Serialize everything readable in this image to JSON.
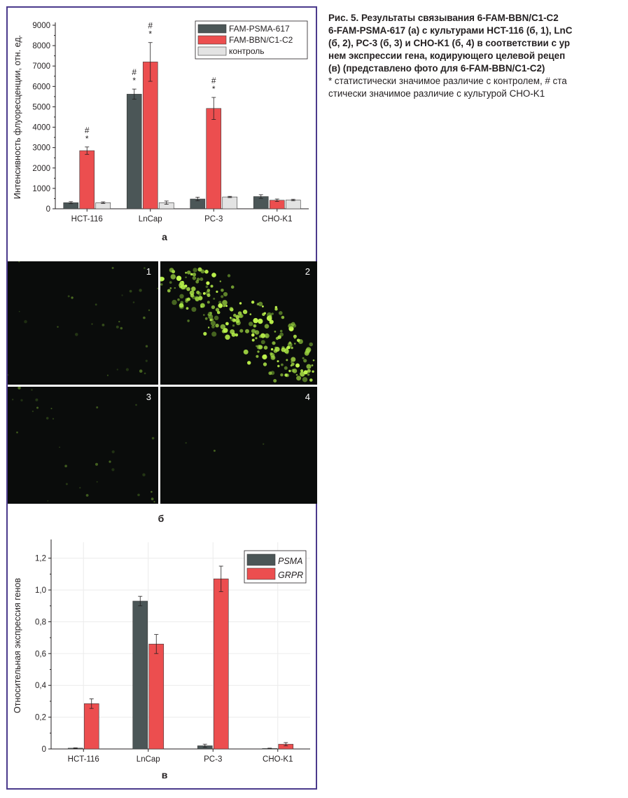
{
  "caption": {
    "lines": [
      "Рис. 5. Результаты связывания 6-FAM-BBN/C1-C2",
      "6-FAM-PSMA-617 (а) с культурами HCT-116 (б, 1), LnC",
      "(б, 2), PC-3 (б, 3) и CHO-K1 (б, 4) в соответствии с ур",
      "нем экспрессии гена, кодирующего целевой рецеп",
      "(в) (представлено фото для 6-FAM-BBN/C1-C2)",
      "* статистически значимое различие с контролем, # ста",
      "стически значимое различие с культурой CHO-K1"
    ]
  },
  "colors": {
    "dark": "#4b5657",
    "red": "#ec4e4f",
    "light": "#e3e3e3",
    "frame": "#4b3a8c"
  },
  "chart_data": [
    {
      "type": "bar",
      "panel_label": "а",
      "ylabel": "Интенсивность флуоресценции, отн. ед.",
      "xlabel": "",
      "ylim": [
        0,
        9000
      ],
      "yticks": [
        "0",
        "1000",
        "2000",
        "3000",
        "4000",
        "5000",
        "6000",
        "7000",
        "8000",
        "9000"
      ],
      "categories": [
        "HCT-116",
        "LnCap",
        "PC-3",
        "CHO-K1"
      ],
      "legend_position": "top-right",
      "series": [
        {
          "name": "FAM-PSMA-617",
          "values": [
            300,
            5620,
            480,
            600
          ],
          "errors": [
            50,
            250,
            90,
            90
          ]
        },
        {
          "name": "FAM-BBN/C1-C2",
          "values": [
            2850,
            7200,
            4920,
            420
          ],
          "errors": [
            180,
            950,
            540,
            60
          ]
        },
        {
          "name": "контроль",
          "values": [
            300,
            300,
            580,
            430
          ],
          "errors": [
            40,
            80,
            30,
            40
          ]
        }
      ],
      "annotations": [
        {
          "category": "HCT-116",
          "series": "FAM-BBN/C1-C2",
          "marks": [
            "#",
            "*"
          ]
        },
        {
          "category": "LnCap",
          "series": "FAM-PSMA-617",
          "marks": [
            "#",
            "*"
          ]
        },
        {
          "category": "LnCap",
          "series": "FAM-BBN/C1-C2",
          "marks": [
            "#",
            "*"
          ]
        },
        {
          "category": "PC-3",
          "series": "FAM-BBN/C1-C2",
          "marks": [
            "#",
            "*"
          ]
        }
      ]
    },
    {
      "type": "bar",
      "panel_label": "в",
      "ylabel": "Относительная экспрессия генов",
      "xlabel": "",
      "ylim": [
        0,
        1.3
      ],
      "yticks": [
        "0",
        "0,2",
        "0,4",
        "0,6",
        "0,8",
        "1,0",
        "1,2"
      ],
      "categories": [
        "HCT-116",
        "LnCap",
        "PC-3",
        "CHO-K1"
      ],
      "legend_position": "top-right",
      "series": [
        {
          "name": "PSMA",
          "values": [
            0.005,
            0.93,
            0.02,
            0.003
          ],
          "errors": [
            0.002,
            0.03,
            0.01,
            0.002
          ]
        },
        {
          "name": "GRPR",
          "values": [
            0.285,
            0.66,
            1.07,
            0.03
          ],
          "errors": [
            0.03,
            0.06,
            0.08,
            0.01
          ]
        }
      ]
    }
  ],
  "micrographs": {
    "label": "б",
    "panels": [
      {
        "number": "1",
        "fluorescence": "weak"
      },
      {
        "number": "2",
        "fluorescence": "strong"
      },
      {
        "number": "3",
        "fluorescence": "weak"
      },
      {
        "number": "4",
        "fluorescence": "none"
      }
    ]
  }
}
